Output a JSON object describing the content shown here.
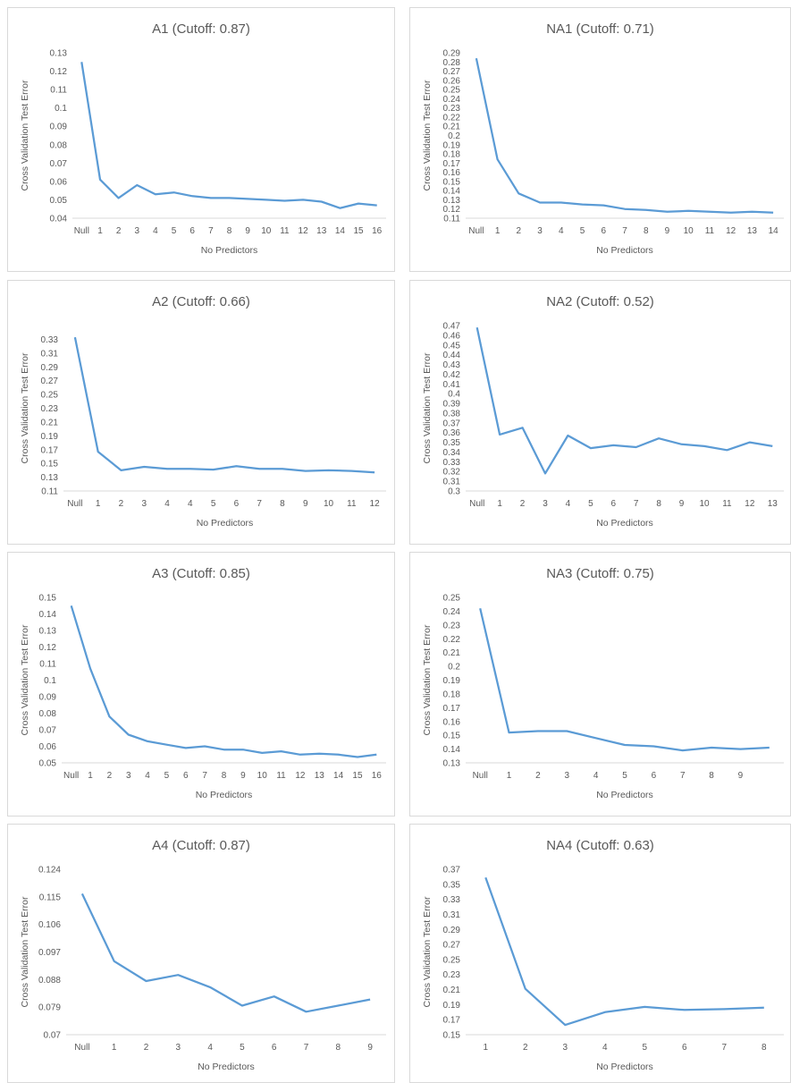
{
  "chart_data": [
    {
      "type": "line",
      "title": "A1 (Cutoff: 0.87)",
      "xlabel": "No Predictors",
      "ylabel": "Cross Validation Test Error",
      "categories": [
        "Null",
        "1",
        "2",
        "3",
        "4",
        "5",
        "6",
        "7",
        "8",
        "9",
        "10",
        "11",
        "12",
        "13",
        "14",
        "15",
        "16"
      ],
      "values": [
        0.125,
        0.061,
        0.051,
        0.058,
        0.053,
        0.054,
        0.052,
        0.051,
        0.051,
        0.0505,
        0.05,
        0.0495,
        0.05,
        0.049,
        0.0455,
        0.048,
        0.047
      ],
      "yticks": [
        "0.04",
        "0.05",
        "0.06",
        "0.07",
        "0.08",
        "0.09",
        "0.1",
        "0.11",
        "0.12",
        "0.13"
      ],
      "ylim": [
        0.04,
        0.13
      ],
      "color": "#5b9bd5"
    },
    {
      "type": "line",
      "title": "NA1 (Cutoff: 0.71)",
      "xlabel": "No Predictors",
      "ylabel": "Cross Validation Test Error",
      "categories": [
        "Null",
        "1",
        "2",
        "3",
        "4",
        "5",
        "6",
        "7",
        "8",
        "9",
        "10",
        "11",
        "12",
        "13",
        "14"
      ],
      "values": [
        0.284,
        0.174,
        0.137,
        0.127,
        0.127,
        0.125,
        0.124,
        0.12,
        0.119,
        0.117,
        0.118,
        0.117,
        0.116,
        0.117,
        0.116
      ],
      "yticks": [
        "0.11",
        "0.12",
        "0.13",
        "0.14",
        "0.15",
        "0.16",
        "0.17",
        "0.18",
        "0.19",
        "0.2",
        "0.21",
        "0.22",
        "0.23",
        "0.24",
        "0.25",
        "0.26",
        "0.27",
        "0.28",
        "0.29"
      ],
      "ylim": [
        0.11,
        0.29
      ],
      "color": "#5b9bd5"
    },
    {
      "type": "line",
      "title": "A2 (Cutoff: 0.66)",
      "xlabel": "No Predictors",
      "ylabel": "Cross Validation Test Error",
      "categories": [
        "Null",
        "1",
        "2",
        "3",
        "4",
        "4",
        "5",
        "6",
        "7",
        "8",
        "9",
        "10",
        "11",
        "12"
      ],
      "values": [
        0.333,
        0.167,
        0.14,
        0.145,
        0.142,
        0.142,
        0.141,
        0.146,
        0.142,
        0.142,
        0.139,
        0.14,
        0.139,
        0.137
      ],
      "yticks": [
        "0.11",
        "0.13",
        "0.15",
        "0.17",
        "0.19",
        "0.21",
        "0.23",
        "0.25",
        "0.27",
        "0.29",
        "0.31",
        "0.33"
      ],
      "ylim": [
        0.11,
        0.35
      ],
      "color": "#5b9bd5"
    },
    {
      "type": "line",
      "title": "NA2 (Cutoff: 0.52)",
      "xlabel": "No Predictors",
      "ylabel": "Cross Validation Test Error",
      "categories": [
        "Null",
        "1",
        "2",
        "3",
        "4",
        "5",
        "6",
        "7",
        "8",
        "9",
        "10",
        "11",
        "12",
        "13"
      ],
      "values": [
        0.468,
        0.358,
        0.365,
        0.318,
        0.357,
        0.344,
        0.347,
        0.345,
        0.354,
        0.348,
        0.346,
        0.342,
        0.35,
        0.346
      ],
      "yticks": [
        "0.3",
        "0.31",
        "0.32",
        "0.33",
        "0.34",
        "0.35",
        "0.36",
        "0.37",
        "0.38",
        "0.39",
        "0.4",
        "0.41",
        "0.42",
        "0.43",
        "0.44",
        "0.45",
        "0.46",
        "0.47"
      ],
      "ylim": [
        0.3,
        0.47
      ],
      "color": "#5b9bd5"
    },
    {
      "type": "line",
      "title": "A3 (Cutoff: 0.85)",
      "xlabel": "No Predictors",
      "ylabel": "Cross Validation Test Error",
      "categories": [
        "Null",
        "1",
        "2",
        "3",
        "4",
        "5",
        "6",
        "7",
        "8",
        "9",
        "10",
        "11",
        "12",
        "13",
        "14",
        "15",
        "16"
      ],
      "values": [
        0.145,
        0.107,
        0.078,
        0.067,
        0.063,
        0.061,
        0.059,
        0.06,
        0.058,
        0.058,
        0.056,
        0.057,
        0.055,
        0.0555,
        0.055,
        0.0535,
        0.055
      ],
      "yticks": [
        "0.05",
        "0.06",
        "0.07",
        "0.08",
        "0.09",
        "0.1",
        "0.11",
        "0.12",
        "0.13",
        "0.14",
        "0.15"
      ],
      "ylim": [
        0.05,
        0.15
      ],
      "color": "#5b9bd5"
    },
    {
      "type": "line",
      "title": "NA3 (Cutoff: 0.75)",
      "xlabel": "No Predictors",
      "ylabel": "Cross Validation Test Error",
      "categories": [
        "Null",
        "1",
        "2",
        "3",
        "4",
        "5",
        "6",
        "7",
        "8",
        "9",
        ""
      ],
      "values": [
        0.242,
        0.152,
        0.153,
        0.153,
        0.148,
        0.143,
        0.142,
        0.139,
        0.141,
        0.14,
        0.141
      ],
      "yticks": [
        "0.13",
        "0.14",
        "0.15",
        "0.16",
        "0.17",
        "0.18",
        "0.19",
        "0.2",
        "0.21",
        "0.22",
        "0.23",
        "0.24",
        "0.25"
      ],
      "ylim": [
        0.13,
        0.25
      ],
      "color": "#5b9bd5"
    },
    {
      "type": "line",
      "title": "A4 (Cutoff: 0.87)",
      "xlabel": "No Predictors",
      "ylabel": "Cross Validation Test Error",
      "categories": [
        "Null",
        "1",
        "2",
        "3",
        "4",
        "5",
        "6",
        "7",
        "8",
        "9"
      ],
      "values": [
        0.116,
        0.094,
        0.0875,
        0.0895,
        0.0855,
        0.0795,
        0.0825,
        0.0775,
        0.0795,
        0.0815
      ],
      "yticks": [
        "0.07",
        "0.079",
        "0.088",
        "0.097",
        "0.106",
        "0.115",
        "0.124"
      ],
      "ylim": [
        0.07,
        0.124
      ],
      "color": "#5b9bd5"
    },
    {
      "type": "line",
      "title": "NA4 (Cutoff: 0.63)",
      "xlabel": "No Predictors",
      "ylabel": "Cross Validation Test Error",
      "categories": [
        "1",
        "2",
        "3",
        "4",
        "5",
        "6",
        "7",
        "8"
      ],
      "values": [
        0.359,
        0.211,
        0.163,
        0.18,
        0.187,
        0.183,
        0.184,
        0.186
      ],
      "yticks": [
        "0.15",
        "0.17",
        "0.19",
        "0.21",
        "0.23",
        "0.25",
        "0.27",
        "0.29",
        "0.31",
        "0.33",
        "0.35",
        "0.37"
      ],
      "ylim": [
        0.15,
        0.37
      ],
      "color": "#5b9bd5"
    }
  ]
}
